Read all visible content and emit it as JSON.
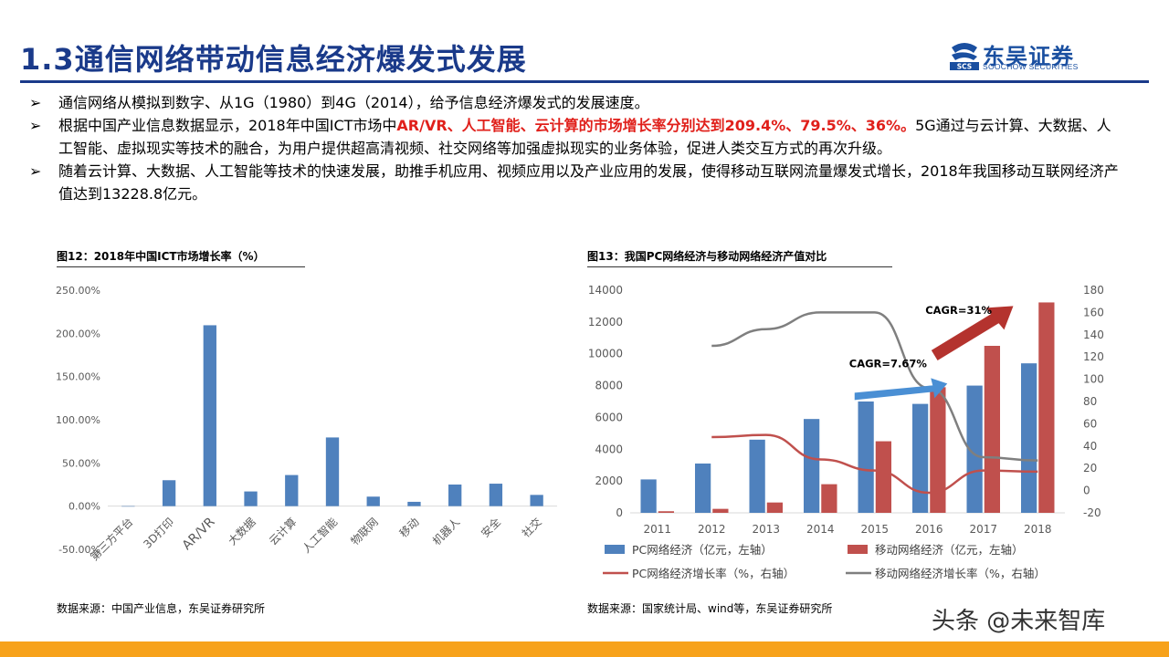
{
  "header": {
    "title": "1.3通信网络带动信息经济爆发式发展",
    "logo_text": "东吴证券",
    "logo_sub": "SOOCHOW SECURITIES",
    "logo_badge": "SCS"
  },
  "bullets": {
    "b1": "通信网络从模拟到数字、从1G（1980）到4G（2014），给予信息经济爆发式的发展速度。",
    "b2_pre": "根据中国产业信息数据显示，2018年中国ICT市场中",
    "b2_red": "AR/VR、人工智能、云计算的市场增长率分别达到209.4%、79.5%、36%。",
    "b2_post": "5G通过与云计算、大数据、人工智能、虚拟现实等技术的融合，为用户提供超高清视频、社交网络等加强虚拟现实的业务体验，促进人类交互方式的再次升级。",
    "b3": "随着云计算、大数据、人工智能等技术的快速发展，助推手机应用、视频应用以及产业应用的发展，使得移动互联网流量爆发式增长，2018年我国移动互联网经济产值达到13228.8亿元。",
    "mark": "➢"
  },
  "figures": {
    "fig12_title": "图12：2018年中国ICT市场增长率（%）",
    "fig12_source": "数据来源：中国产业信息，东吴证券研究所",
    "fig13_title": "图13：我国PC网络经济与移动网络经济产值对比",
    "fig13_source": "数据来源：国家统计局、wind等，东吴证券研究所"
  },
  "watermark": "头条 @未来智库",
  "colors": {
    "title": "#1a3a8a",
    "blue_bar": "#4f81bd",
    "red_bar": "#c0504d",
    "grey_line": "#7f7f7f",
    "red_text": "#e0201b",
    "footer": "#f7a21b"
  },
  "chart_data": [
    {
      "type": "bar",
      "categories": [
        "第三方平台",
        "3D打印",
        "AR/VR",
        "大数据",
        "云计算",
        "人工智能",
        "物联网",
        "移动",
        "机器人",
        "安全",
        "社交"
      ],
      "values": [
        0,
        30,
        209.4,
        17,
        36,
        79.5,
        11,
        5,
        25,
        26,
        13
      ],
      "yticks": [
        "-50.00%",
        "0.00%",
        "50.00%",
        "100.00%",
        "150.00%",
        "200.00%",
        "250.00%"
      ],
      "ylim": [
        -50,
        250
      ],
      "grid": false
    },
    {
      "type": "bar",
      "categories": [
        "2011",
        "2012",
        "2013",
        "2014",
        "2015",
        "2016",
        "2017",
        "2018"
      ],
      "series": [
        {
          "name": "PC网络经济（亿元，左轴）",
          "axis": "left",
          "kind": "bar",
          "values": [
            2100,
            3100,
            4600,
            5900,
            7000,
            6850,
            8000,
            9400
          ]
        },
        {
          "name": "移动网络经济（亿元，左轴）",
          "axis": "left",
          "kind": "bar",
          "values": [
            100,
            250,
            650,
            1800,
            4500,
            7900,
            10500,
            13228.8
          ]
        },
        {
          "name": "PC网络经济增长率（%，右轴）",
          "axis": "right",
          "kind": "line",
          "values": [
            null,
            48,
            50,
            28,
            18,
            -2,
            18,
            17
          ]
        },
        {
          "name": "移动网络经济增长率（%，右轴）",
          "axis": "right",
          "kind": "line",
          "values": [
            null,
            130,
            145,
            160,
            160,
            92,
            30,
            27
          ]
        }
      ],
      "left_ylim": [
        0,
        14000
      ],
      "left_yticks": [
        "0",
        "2000",
        "4000",
        "6000",
        "8000",
        "10000",
        "12000",
        "14000"
      ],
      "right_ylim": [
        -20,
        180
      ],
      "right_yticks": [
        "-20",
        "0",
        "20",
        "40",
        "60",
        "80",
        "100",
        "120",
        "140",
        "160",
        "180"
      ],
      "annotations": [
        "CAGR=7.67%",
        "CAGR=31%"
      ],
      "legend": "bottom"
    }
  ]
}
